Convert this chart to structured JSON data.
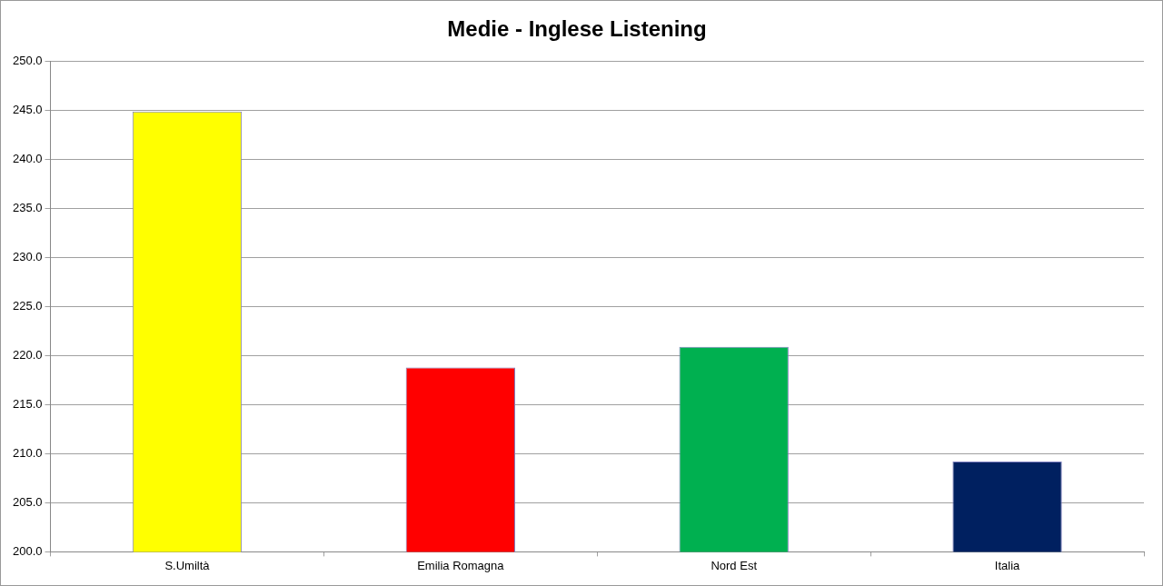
{
  "chart_data": {
    "type": "bar",
    "title": "Medie - Inglese Listening",
    "categories": [
      "S.Umiltà",
      "Emilia Romagna",
      "Nord Est",
      "Italia"
    ],
    "values": [
      244.9,
      218.8,
      220.9,
      209.2
    ],
    "colors": [
      "#ffff00",
      "#ff0000",
      "#00b050",
      "#002060"
    ],
    "ylim": [
      200,
      250
    ],
    "yticks": [
      {
        "value": 200,
        "label": "200.0"
      },
      {
        "value": 205,
        "label": "205.0"
      },
      {
        "value": 210,
        "label": "210.0"
      },
      {
        "value": 215,
        "label": "215.0"
      },
      {
        "value": 220,
        "label": "220.0"
      },
      {
        "value": 225,
        "label": "225.0"
      },
      {
        "value": 230,
        "label": "230.0"
      },
      {
        "value": 235,
        "label": "235.0"
      },
      {
        "value": 240,
        "label": "240.0"
      },
      {
        "value": 245,
        "label": "245.0"
      },
      {
        "value": 250,
        "label": "250.0"
      }
    ],
    "grid": "y",
    "legend": false
  }
}
